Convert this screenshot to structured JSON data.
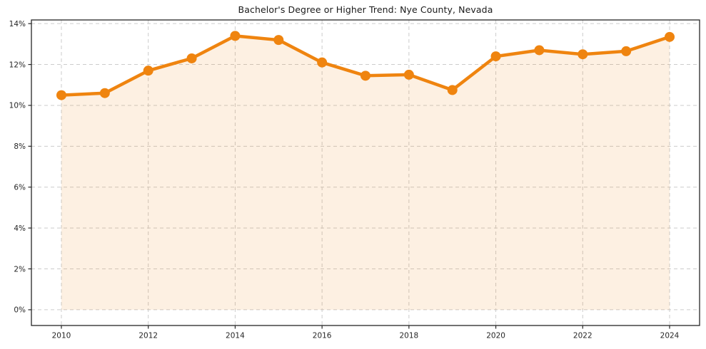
{
  "page": {
    "background_color": "#ffffff"
  },
  "chart_data": {
    "type": "line",
    "title": "Bachelor's Degree or Higher Trend: Nye County, Nevada",
    "xlabel": "",
    "ylabel": "",
    "x": [
      2010,
      2011,
      2012,
      2013,
      2014,
      2015,
      2016,
      2017,
      2018,
      2019,
      2020,
      2021,
      2022,
      2023,
      2024
    ],
    "values": [
      10.5,
      10.6,
      11.7,
      12.3,
      13.4,
      13.2,
      12.1,
      11.45,
      11.5,
      10.75,
      12.4,
      12.7,
      12.5,
      12.65,
      13.35
    ],
    "value_unit": "%",
    "xlim": [
      2009.31,
      2024.69
    ],
    "ylim": [
      -0.77,
      14.18
    ],
    "x_ticks": [
      2010,
      2012,
      2014,
      2016,
      2018,
      2020,
      2022,
      2024
    ],
    "y_ticks": [
      0,
      2,
      4,
      6,
      8,
      10,
      12,
      14
    ],
    "y_tick_labels": [
      "0%",
      "2%",
      "4%",
      "6%",
      "8%",
      "10%",
      "12%",
      "14%"
    ],
    "grid": true,
    "grid_style": "dashed",
    "legend": false,
    "colors": {
      "line": "#ef840f",
      "marker": "#ef840f",
      "area_fill": "rgba(239,132,15,0.12)",
      "grid": "#cccccc",
      "spine": "#262626",
      "tick_label": "#262626",
      "title": "#1a1a1a"
    }
  }
}
